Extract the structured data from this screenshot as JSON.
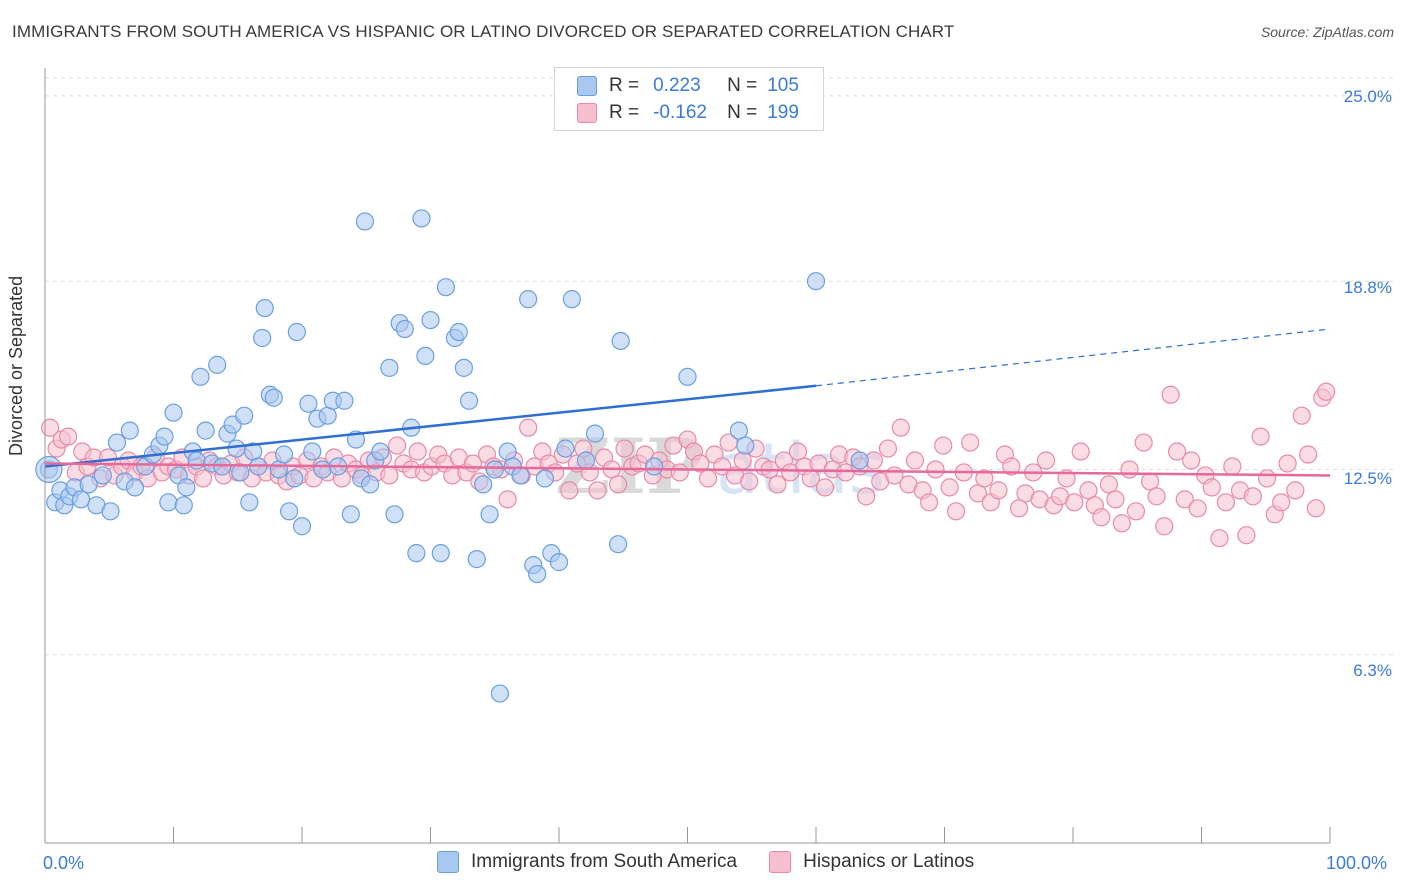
{
  "header": {
    "title": "IMMIGRANTS FROM SOUTH AMERICA VS HISPANIC OR LATINO DIVORCED OR SEPARATED CORRELATION CHART",
    "source": "Source: ZipAtlas.com"
  },
  "legend": {
    "rows": [
      {
        "r_label": "R =",
        "r_value": "0.223",
        "n_label": "N =",
        "n_value": "105"
      },
      {
        "r_label": "R =",
        "r_value": "-0.162",
        "n_label": "N =",
        "n_value": "199"
      }
    ]
  },
  "colors": {
    "blue_fill": "#a9c8f0",
    "blue_stroke": "#6a9fe0",
    "blue_line": "#2f6fd1",
    "pink_fill": "#f6bfd0",
    "pink_stroke": "#e98aa8",
    "pink_line": "#e7689a",
    "tick_text": "#3a7bd5",
    "grid": "#dddddd"
  },
  "chart_data": {
    "type": "scatter",
    "title": "IMMIGRANTS FROM SOUTH AMERICA VS HISPANIC OR LATINO DIVORCED OR SEPARATED CORRELATION CHART",
    "xlabel": "",
    "ylabel": "Divorced or Separated",
    "xlim": [
      0,
      100
    ],
    "ylim": [
      0,
      25.6
    ],
    "x_tick_labels": [
      "0.0%",
      "100.0%"
    ],
    "y_ticks": [
      6.3,
      12.5,
      18.8,
      25.0
    ],
    "y_tick_labels": [
      "6.3%",
      "12.5%",
      "18.8%",
      "25.0%"
    ],
    "grid": true,
    "legend_position": "bottom",
    "watermark": "ZIPatlas",
    "series": [
      {
        "name": "Immigrants from South America",
        "color": "blue",
        "trend": {
          "x0": 0,
          "y0": 12.6,
          "x1": 60,
          "y1": 15.3,
          "dash_to_x": 100,
          "dash_to_y": 17.2
        },
        "points": [
          [
            0.3,
            12.5
          ],
          [
            0.8,
            11.4
          ],
          [
            1.2,
            11.8
          ],
          [
            1.5,
            11.3
          ],
          [
            1.9,
            11.6
          ],
          [
            2.3,
            11.9
          ],
          [
            2.8,
            11.5
          ],
          [
            3.4,
            12.0
          ],
          [
            4.0,
            11.3
          ],
          [
            4.5,
            12.3
          ],
          [
            5.1,
            11.1
          ],
          [
            5.6,
            13.4
          ],
          [
            6.2,
            12.1
          ],
          [
            6.6,
            13.8
          ],
          [
            7.0,
            11.9
          ],
          [
            7.8,
            12.6
          ],
          [
            8.4,
            13.0
          ],
          [
            8.9,
            13.3
          ],
          [
            9.3,
            13.6
          ],
          [
            9.6,
            11.4
          ],
          [
            10.0,
            14.4
          ],
          [
            10.4,
            12.3
          ],
          [
            10.8,
            11.3
          ],
          [
            11.0,
            11.9
          ],
          [
            11.5,
            13.1
          ],
          [
            11.8,
            12.8
          ],
          [
            12.1,
            15.6
          ],
          [
            12.5,
            13.8
          ],
          [
            13.0,
            12.7
          ],
          [
            13.4,
            16.0
          ],
          [
            13.8,
            12.6
          ],
          [
            14.2,
            13.7
          ],
          [
            14.6,
            14.0
          ],
          [
            14.9,
            13.2
          ],
          [
            15.2,
            12.4
          ],
          [
            15.5,
            14.3
          ],
          [
            15.9,
            11.4
          ],
          [
            16.2,
            13.1
          ],
          [
            16.6,
            12.6
          ],
          [
            16.9,
            16.9
          ],
          [
            17.1,
            17.9
          ],
          [
            17.5,
            15.0
          ],
          [
            17.8,
            14.9
          ],
          [
            18.2,
            12.5
          ],
          [
            18.6,
            13.0
          ],
          [
            19.0,
            11.1
          ],
          [
            19.4,
            12.2
          ],
          [
            19.6,
            17.1
          ],
          [
            20.0,
            10.6
          ],
          [
            20.5,
            14.7
          ],
          [
            20.8,
            13.1
          ],
          [
            21.2,
            14.2
          ],
          [
            21.6,
            12.5
          ],
          [
            22.0,
            14.3
          ],
          [
            22.4,
            14.8
          ],
          [
            22.8,
            12.6
          ],
          [
            23.3,
            14.8
          ],
          [
            23.8,
            11.0
          ],
          [
            24.2,
            13.5
          ],
          [
            24.6,
            12.2
          ],
          [
            24.9,
            20.8
          ],
          [
            25.3,
            12.0
          ],
          [
            25.7,
            12.8
          ],
          [
            26.1,
            13.1
          ],
          [
            26.8,
            15.9
          ],
          [
            27.2,
            11.0
          ],
          [
            27.6,
            17.4
          ],
          [
            28.0,
            17.2
          ],
          [
            28.5,
            13.9
          ],
          [
            28.9,
            9.7
          ],
          [
            29.3,
            20.9
          ],
          [
            29.6,
            16.3
          ],
          [
            30.0,
            17.5
          ],
          [
            30.8,
            9.7
          ],
          [
            31.2,
            18.6
          ],
          [
            31.9,
            16.9
          ],
          [
            32.2,
            17.1
          ],
          [
            32.6,
            15.9
          ],
          [
            33.0,
            14.8
          ],
          [
            33.6,
            9.5
          ],
          [
            34.1,
            12.0
          ],
          [
            34.6,
            11.0
          ],
          [
            35.0,
            12.5
          ],
          [
            35.4,
            5.0
          ],
          [
            36.0,
            13.1
          ],
          [
            36.4,
            12.6
          ],
          [
            37.0,
            12.3
          ],
          [
            37.6,
            18.2
          ],
          [
            38.0,
            9.3
          ],
          [
            38.3,
            9.0
          ],
          [
            38.9,
            12.2
          ],
          [
            39.4,
            9.7
          ],
          [
            40.0,
            9.4
          ],
          [
            40.5,
            13.2
          ],
          [
            41.0,
            18.2
          ],
          [
            42.1,
            12.8
          ],
          [
            42.8,
            13.7
          ],
          [
            44.6,
            10.0
          ],
          [
            44.8,
            16.8
          ],
          [
            47.4,
            12.6
          ],
          [
            50.0,
            15.6
          ],
          [
            54.0,
            13.8
          ],
          [
            54.5,
            13.3
          ],
          [
            60.0,
            18.8
          ],
          [
            63.4,
            12.8
          ]
        ]
      },
      {
        "name": "Hispanics or Latinos",
        "color": "pink",
        "trend": {
          "x0": 0,
          "y0": 12.7,
          "x1": 100,
          "y1": 12.3
        },
        "points": [
          [
            0.4,
            13.9
          ],
          [
            0.9,
            13.2
          ],
          [
            1.3,
            13.5
          ],
          [
            1.8,
            13.6
          ],
          [
            2.4,
            12.4
          ],
          [
            2.9,
            13.1
          ],
          [
            3.3,
            12.6
          ],
          [
            3.8,
            12.9
          ],
          [
            4.3,
            12.2
          ],
          [
            4.9,
            12.9
          ],
          [
            5.4,
            12.3
          ],
          [
            6.0,
            12.6
          ],
          [
            6.5,
            12.8
          ],
          [
            7.0,
            12.4
          ],
          [
            7.5,
            12.6
          ],
          [
            8.0,
            12.2
          ],
          [
            8.6,
            12.9
          ],
          [
            9.1,
            12.4
          ],
          [
            9.6,
            12.6
          ],
          [
            10.2,
            12.5
          ],
          [
            10.7,
            12.9
          ],
          [
            11.2,
            12.3
          ],
          [
            11.8,
            12.6
          ],
          [
            12.3,
            12.2
          ],
          [
            12.8,
            12.8
          ],
          [
            13.4,
            12.6
          ],
          [
            13.9,
            12.3
          ],
          [
            14.5,
            12.7
          ],
          [
            15.0,
            12.4
          ],
          [
            15.5,
            12.9
          ],
          [
            16.1,
            12.2
          ],
          [
            16.6,
            12.6
          ],
          [
            17.2,
            12.4
          ],
          [
            17.7,
            12.8
          ],
          [
            18.2,
            12.3
          ],
          [
            18.8,
            12.1
          ],
          [
            19.3,
            12.6
          ],
          [
            19.8,
            12.3
          ],
          [
            20.4,
            12.8
          ],
          [
            20.9,
            12.2
          ],
          [
            21.5,
            12.6
          ],
          [
            22.0,
            12.4
          ],
          [
            22.5,
            12.9
          ],
          [
            23.1,
            12.2
          ],
          [
            23.6,
            12.7
          ],
          [
            24.2,
            12.5
          ],
          [
            24.7,
            12.3
          ],
          [
            25.2,
            12.8
          ],
          [
            25.8,
            12.4
          ],
          [
            26.3,
            12.9
          ],
          [
            26.8,
            12.3
          ],
          [
            27.4,
            13.3
          ],
          [
            27.9,
            12.7
          ],
          [
            28.5,
            12.5
          ],
          [
            29.0,
            13.1
          ],
          [
            29.5,
            12.4
          ],
          [
            30.1,
            12.6
          ],
          [
            30.6,
            13.0
          ],
          [
            31.1,
            12.7
          ],
          [
            31.7,
            12.3
          ],
          [
            32.2,
            12.9
          ],
          [
            32.8,
            12.4
          ],
          [
            33.3,
            12.7
          ],
          [
            33.8,
            12.1
          ],
          [
            34.4,
            13.0
          ],
          [
            34.9,
            12.6
          ],
          [
            35.5,
            12.5
          ],
          [
            36.0,
            11.5
          ],
          [
            36.5,
            12.8
          ],
          [
            37.1,
            12.3
          ],
          [
            37.6,
            13.9
          ],
          [
            38.1,
            12.6
          ],
          [
            38.7,
            13.1
          ],
          [
            39.2,
            12.7
          ],
          [
            39.7,
            12.4
          ],
          [
            40.3,
            13.0
          ],
          [
            40.8,
            11.8
          ],
          [
            41.4,
            12.7
          ],
          [
            41.9,
            13.2
          ],
          [
            42.4,
            12.4
          ],
          [
            43.0,
            11.8
          ],
          [
            43.5,
            12.9
          ],
          [
            44.1,
            12.5
          ],
          [
            44.6,
            12.0
          ],
          [
            45.1,
            13.2
          ],
          [
            45.7,
            12.6
          ],
          [
            46.2,
            12.7
          ],
          [
            46.7,
            13.0
          ],
          [
            47.3,
            12.3
          ],
          [
            47.8,
            12.8
          ],
          [
            48.4,
            12.5
          ],
          [
            48.9,
            13.3
          ],
          [
            49.4,
            12.4
          ],
          [
            50.0,
            13.5
          ],
          [
            50.5,
            13.1
          ],
          [
            51.0,
            12.7
          ],
          [
            51.6,
            12.2
          ],
          [
            52.1,
            13.0
          ],
          [
            52.7,
            12.6
          ],
          [
            53.2,
            13.4
          ],
          [
            53.7,
            12.3
          ],
          [
            54.3,
            12.8
          ],
          [
            54.8,
            12.1
          ],
          [
            55.3,
            13.2
          ],
          [
            55.9,
            12.6
          ],
          [
            56.4,
            12.5
          ],
          [
            57.0,
            12.0
          ],
          [
            57.5,
            12.8
          ],
          [
            58.0,
            12.4
          ],
          [
            58.6,
            13.1
          ],
          [
            59.1,
            12.6
          ],
          [
            59.6,
            12.2
          ],
          [
            60.2,
            12.7
          ],
          [
            60.7,
            11.9
          ],
          [
            61.3,
            12.5
          ],
          [
            61.8,
            13.0
          ],
          [
            62.3,
            12.4
          ],
          [
            62.9,
            12.9
          ],
          [
            63.4,
            12.6
          ],
          [
            63.9,
            11.6
          ],
          [
            64.5,
            12.8
          ],
          [
            65.0,
            12.1
          ],
          [
            65.6,
            13.2
          ],
          [
            66.1,
            12.3
          ],
          [
            66.6,
            13.9
          ],
          [
            67.2,
            12.0
          ],
          [
            67.7,
            12.8
          ],
          [
            68.3,
            11.8
          ],
          [
            68.8,
            11.4
          ],
          [
            69.3,
            12.5
          ],
          [
            69.9,
            13.3
          ],
          [
            70.4,
            11.9
          ],
          [
            70.9,
            11.1
          ],
          [
            71.5,
            12.4
          ],
          [
            72.0,
            13.4
          ],
          [
            72.6,
            11.7
          ],
          [
            73.1,
            12.2
          ],
          [
            73.6,
            11.4
          ],
          [
            74.2,
            11.8
          ],
          [
            74.7,
            13.0
          ],
          [
            75.2,
            12.6
          ],
          [
            75.8,
            11.2
          ],
          [
            76.3,
            11.7
          ],
          [
            76.9,
            12.4
          ],
          [
            77.4,
            11.5
          ],
          [
            77.9,
            12.8
          ],
          [
            78.5,
            11.3
          ],
          [
            79.0,
            11.6
          ],
          [
            79.5,
            12.2
          ],
          [
            80.1,
            11.4
          ],
          [
            80.6,
            13.1
          ],
          [
            81.2,
            11.8
          ],
          [
            81.7,
            11.3
          ],
          [
            82.2,
            10.9
          ],
          [
            82.8,
            12.0
          ],
          [
            83.3,
            11.5
          ],
          [
            83.8,
            10.7
          ],
          [
            84.4,
            12.5
          ],
          [
            84.9,
            11.1
          ],
          [
            85.5,
            13.4
          ],
          [
            86.0,
            12.1
          ],
          [
            86.5,
            11.6
          ],
          [
            87.1,
            10.6
          ],
          [
            87.6,
            15.0
          ],
          [
            88.1,
            13.1
          ],
          [
            88.7,
            11.5
          ],
          [
            89.2,
            12.8
          ],
          [
            89.7,
            11.2
          ],
          [
            90.3,
            12.3
          ],
          [
            90.8,
            11.9
          ],
          [
            91.4,
            10.2
          ],
          [
            91.9,
            11.4
          ],
          [
            92.4,
            12.6
          ],
          [
            93.0,
            11.8
          ],
          [
            93.5,
            10.3
          ],
          [
            94.0,
            11.6
          ],
          [
            94.6,
            13.6
          ],
          [
            95.1,
            12.2
          ],
          [
            95.7,
            11.0
          ],
          [
            96.2,
            11.4
          ],
          [
            96.7,
            12.7
          ],
          [
            97.3,
            11.8
          ],
          [
            97.8,
            14.3
          ],
          [
            98.3,
            13.0
          ],
          [
            98.9,
            11.2
          ],
          [
            99.4,
            14.9
          ],
          [
            99.7,
            15.1
          ]
        ]
      }
    ]
  },
  "axes": {
    "y_label": "Divorced or Separated",
    "x_min_label": "0.0%",
    "x_max_label": "100.0%"
  }
}
